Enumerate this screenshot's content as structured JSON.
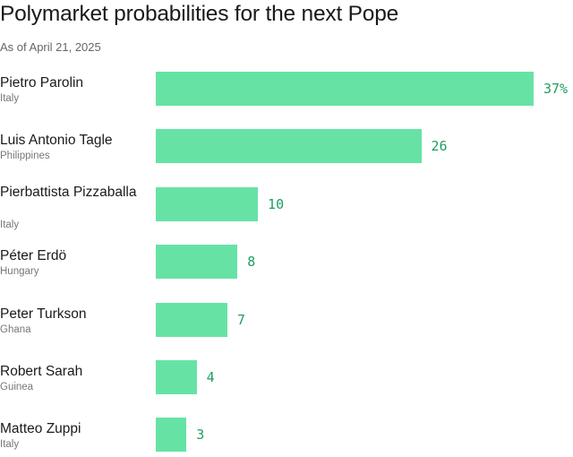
{
  "header": {
    "title": "Polymarket probabilities for the next Pope",
    "subtitle": "As of April 21, 2025"
  },
  "colors": {
    "bar": "#66e3a4",
    "value_text": "#1f9e5f",
    "secondary_text": "#777777"
  },
  "chart_data": {
    "type": "bar",
    "orientation": "horizontal",
    "title": "Polymarket probabilities for the next Pope",
    "subtitle": "As of April 21, 2025",
    "xlim": [
      0,
      37
    ],
    "categories": [
      "Pietro Parolin",
      "Luis Antonio Tagle",
      "Pierbattista Pizzaballa",
      "Péter Erdö",
      "Peter Turkson",
      "Robert Sarah",
      "Matteo Zuppi"
    ],
    "countries": [
      "Italy",
      "Philippines",
      "Italy",
      "Hungary",
      "Ghana",
      "Guinea",
      "Italy"
    ],
    "values": [
      37,
      26,
      10,
      8,
      7,
      4,
      3
    ],
    "value_labels": [
      "37%",
      "26",
      "10",
      "8",
      "7",
      "4",
      "3"
    ]
  }
}
